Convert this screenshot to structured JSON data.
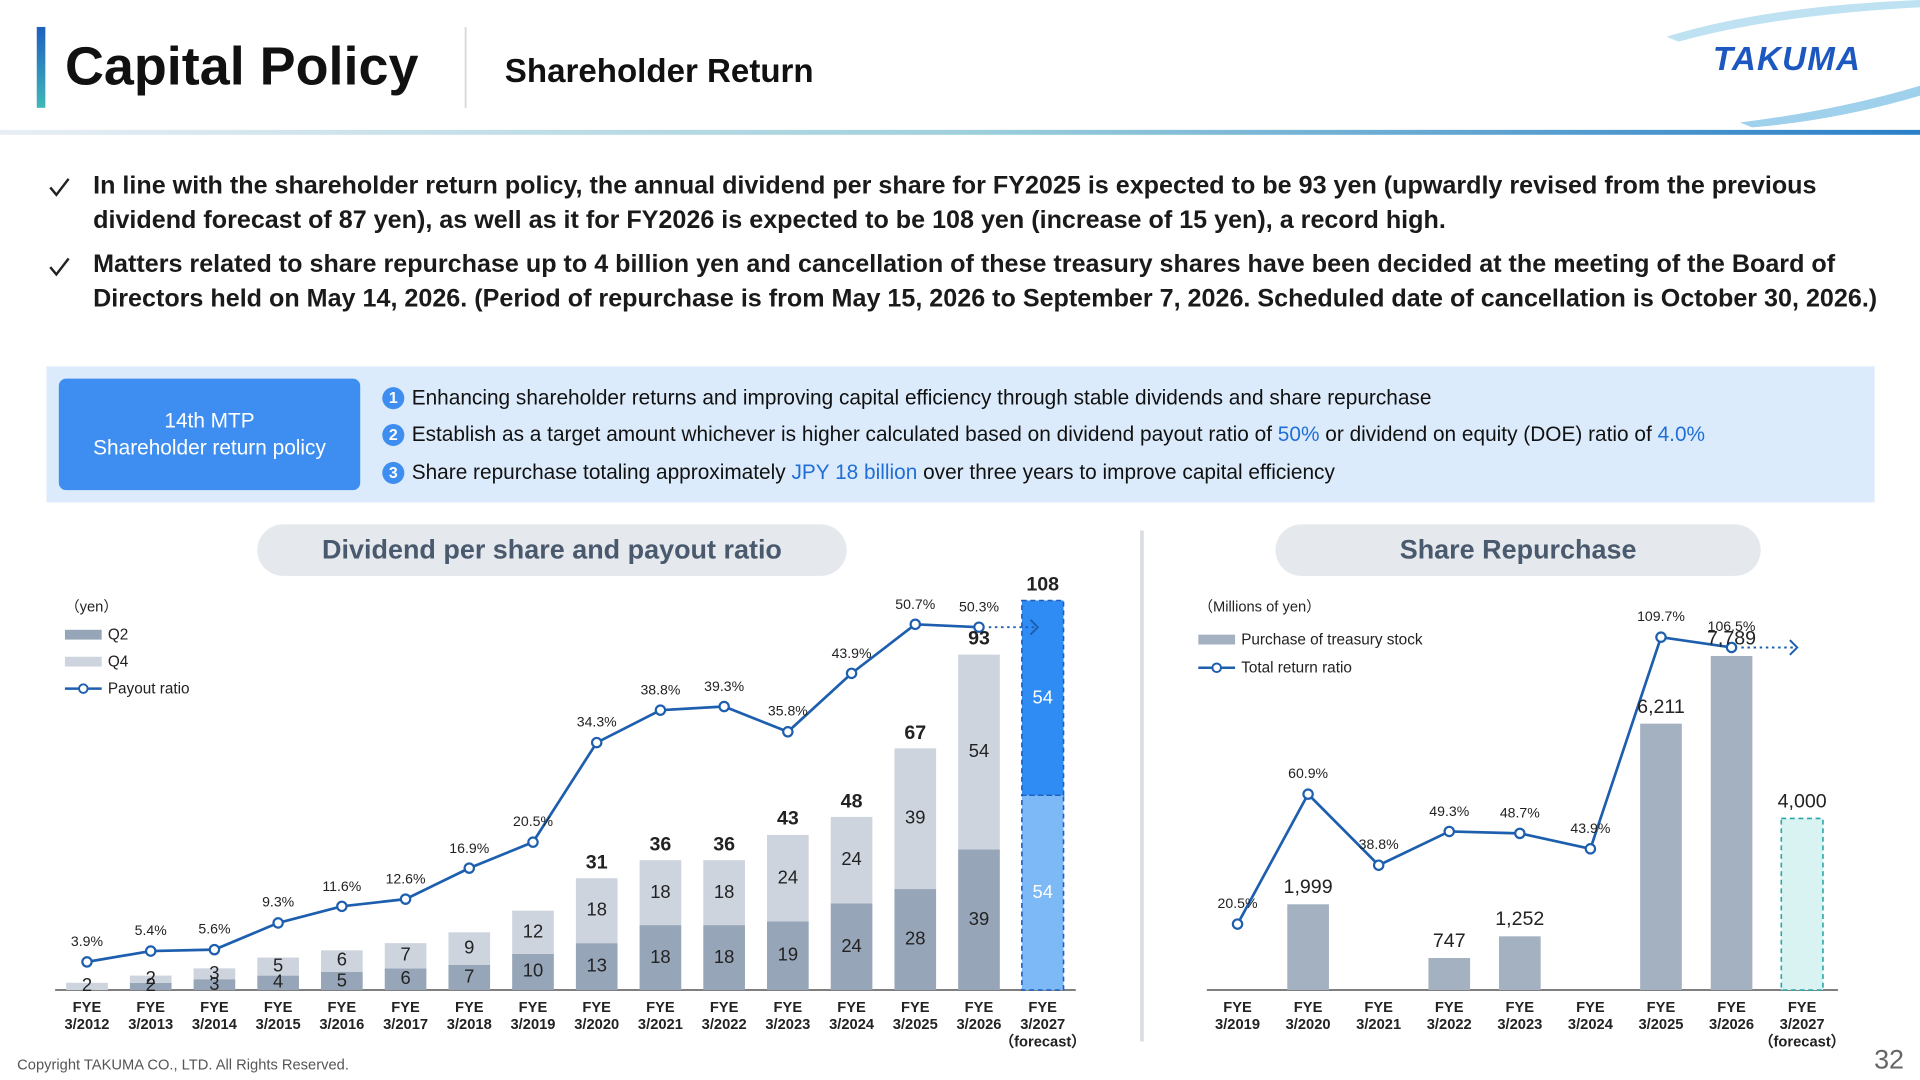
{
  "header": {
    "title": "Capital Policy",
    "subtitle": "Shareholder Return",
    "logo": "TAKUMA"
  },
  "bullets": [
    "In line with the shareholder return policy, the annual dividend per share for FY2025 is expected to be 93 yen (upwardly revised from the previous dividend forecast of 87 yen), as well as it for FY2026 is expected to be 108 yen (increase of 15 yen), a record high.",
    "Matters related to share repurchase up to 4 billion yen and cancellation of these treasury shares have been decided at the meeting of the Board of Directors held on May 14, 2026. (Period of repurchase is from May 15, 2026 to September 7, 2026. Scheduled date of cancellation is October 30, 2026.)"
  ],
  "policy": {
    "label": "14th MTP\nShareholder return policy",
    "items": [
      {
        "marker": "1",
        "parts": [
          "Enhancing shareholder returns and improving capital efficiency through stable dividends and share repurchase"
        ]
      },
      {
        "marker": "2",
        "parts": [
          "Establish as a target amount whichever is higher calculated based on dividend payout ratio of ",
          "50%",
          " or dividend on equity (DOE) ratio of ",
          "4.0%"
        ]
      },
      {
        "marker": "3",
        "parts": [
          "Share repurchase totaling approximately ",
          "JPY 18 billion",
          " over three years to improve capital efficiency"
        ]
      }
    ]
  },
  "chart_data": [
    {
      "type": "bar",
      "stacked": true,
      "title": "Dividend per share and payout ratio",
      "y_unit": "（yen）",
      "categories": [
        "FYE\n3/2012",
        "FYE\n3/2013",
        "FYE\n3/2014",
        "FYE\n3/2015",
        "FYE\n3/2016",
        "FYE\n3/2017",
        "FYE\n3/2018",
        "FYE\n3/2019",
        "FYE\n3/2020",
        "FYE\n3/2021",
        "FYE\n3/2022",
        "FYE\n3/2023",
        "FYE\n3/2024",
        "FYE\n3/2025",
        "FYE\n3/2026",
        "FYE\n3/2027\n（forecast）"
      ],
      "series": [
        {
          "name": "Q2",
          "values": [
            null,
            2,
            3,
            4,
            5,
            6,
            7,
            10,
            13,
            18,
            18,
            19,
            24,
            28,
            39,
            54
          ],
          "colors": [
            "#97a5b8",
            "#97a5b8",
            "#97a5b8",
            "#97a5b8",
            "#97a5b8",
            "#97a5b8",
            "#97a5b8",
            "#97a5b8",
            "#97a5b8",
            "#97a5b8",
            "#97a5b8",
            "#97a5b8",
            "#97a5b8",
            "#97a5b8",
            "#97a5b8",
            "#7db9f7"
          ],
          "outline_colors": [
            null,
            null,
            null,
            null,
            null,
            null,
            null,
            null,
            null,
            null,
            null,
            null,
            null,
            null,
            null,
            "#1f5fbf"
          ]
        },
        {
          "name": "Q4",
          "values": [
            2,
            2,
            3,
            5,
            6,
            7,
            9,
            12,
            18,
            18,
            18,
            24,
            24,
            39,
            54,
            54
          ],
          "colors": [
            "#cdd4de",
            "#cdd4de",
            "#cdd4de",
            "#cdd4de",
            "#cdd4de",
            "#cdd4de",
            "#cdd4de",
            "#cdd4de",
            "#cdd4de",
            "#cdd4de",
            "#cdd4de",
            "#cdd4de",
            "#cdd4de",
            "#cdd4de",
            "#cdd4de",
            "#2f8cf5"
          ],
          "outline_colors": [
            null,
            null,
            null,
            null,
            null,
            null,
            null,
            null,
            null,
            null,
            null,
            null,
            null,
            null,
            null,
            "#1f5fbf"
          ]
        },
        {
          "name": "Payout ratio",
          "type": "line",
          "axis": "y2",
          "color": "#1d5fae",
          "values": [
            3.9,
            5.4,
            5.6,
            9.3,
            11.6,
            12.6,
            16.9,
            20.5,
            34.3,
            38.8,
            39.3,
            35.8,
            43.9,
            50.7,
            50.3,
            null
          ],
          "value_labels": [
            "3.9%",
            "5.4%",
            "5.6%",
            "9.3%",
            "11.6%",
            "12.6%",
            "16.9%",
            "20.5%",
            "34.3%",
            "38.8%",
            "39.3%",
            "35.8%",
            "43.9%",
            "50.7%",
            "50.3%",
            null
          ]
        }
      ],
      "totals": [
        null,
        null,
        null,
        null,
        null,
        null,
        null,
        null,
        31,
        36,
        36,
        43,
        48,
        67,
        93,
        108
      ],
      "ylim": [
        0,
        115
      ],
      "y2lim": [
        0,
        57.5
      ]
    },
    {
      "type": "bar",
      "title": "Share Repurchase",
      "y_unit": "（Millions of yen）",
      "categories": [
        "FYE\n3/2019",
        "FYE\n3/2020",
        "FYE\n3/2021",
        "FYE\n3/2022",
        "FYE\n3/2023",
        "FYE\n3/2024",
        "FYE\n3/2025",
        "FYE\n3/2026",
        "FYE\n3/2027\n（forecast）"
      ],
      "series": [
        {
          "name": "Purchase of treasury stock",
          "values": [
            null,
            1999,
            null,
            747,
            1252,
            null,
            6211,
            7789,
            4000
          ],
          "value_labels": [
            null,
            "1,999",
            null,
            "747",
            "1,252",
            null,
            "6,211",
            "7,789",
            "4,000"
          ],
          "colors": [
            "#a3b1c1",
            "#a3b1c1",
            "#a3b1c1",
            "#a3b1c1",
            "#a3b1c1",
            "#a3b1c1",
            "#a3b1c1",
            "#a3b1c1",
            "#d8f3f2"
          ],
          "outline_colors": [
            null,
            null,
            null,
            null,
            null,
            null,
            null,
            null,
            "#2aa6a6"
          ]
        },
        {
          "name": "Total return ratio",
          "type": "line",
          "axis": "y2",
          "color": "#1d5fae",
          "values": [
            20.5,
            60.9,
            38.8,
            49.3,
            48.7,
            43.9,
            109.7,
            106.5,
            null
          ],
          "value_labels": [
            "20.5%",
            "60.9%",
            "38.8%",
            "49.3%",
            "48.7%",
            "43.9%",
            "109.7%",
            "106.5%",
            null
          ]
        }
      ],
      "ylim": [
        0,
        9000
      ],
      "y2lim": [
        0,
        120
      ]
    }
  ],
  "footer": {
    "copyright": "Copyright  TAKUMA CO., LTD.  All Rights Reserved.",
    "page": "32"
  }
}
